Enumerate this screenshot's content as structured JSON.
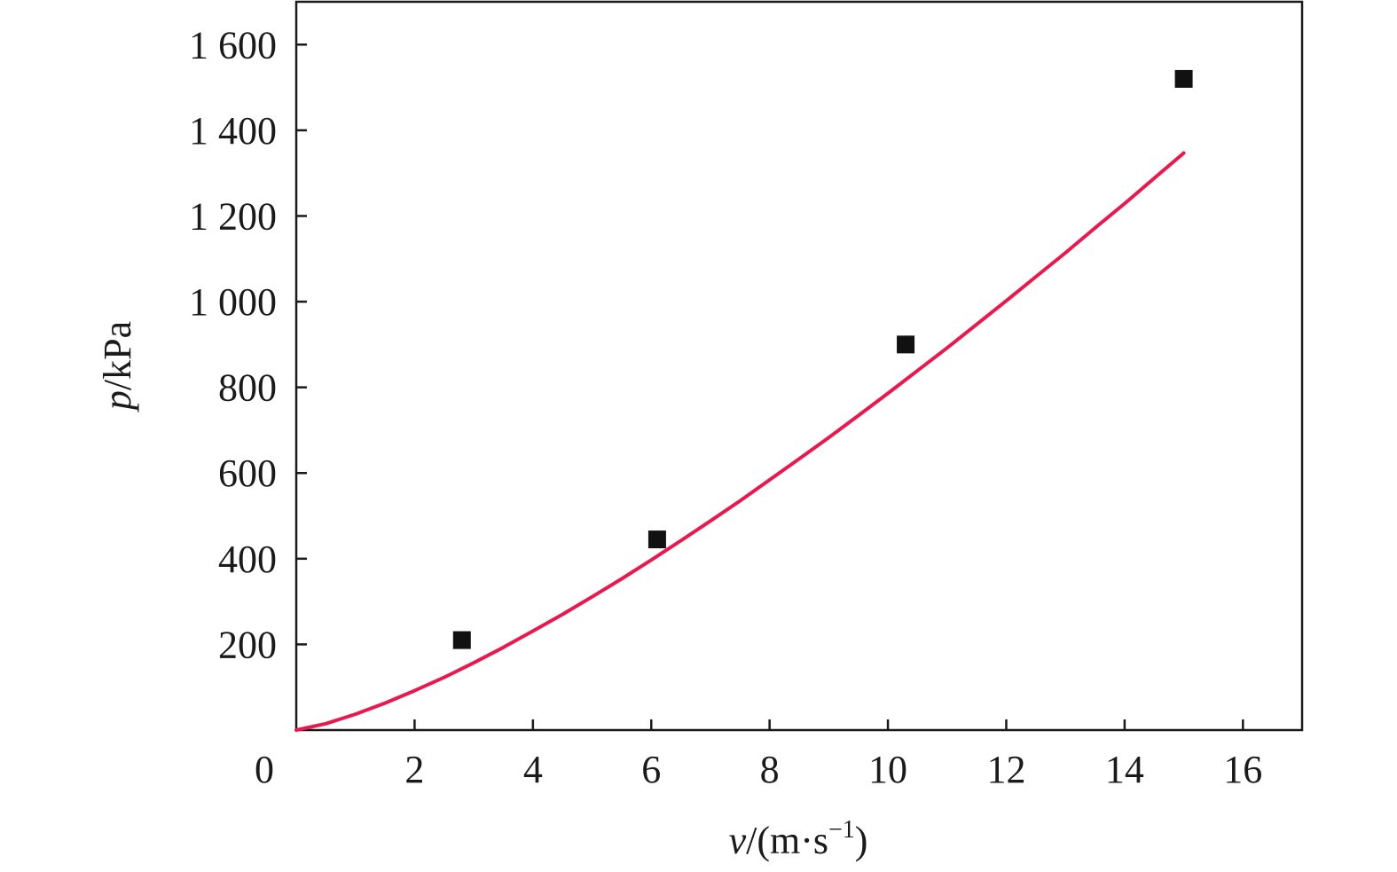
{
  "chart_data": {
    "type": "scatter",
    "xlabel": {
      "var": "v",
      "unit_prefix": "/(m·s",
      "exp": "−1",
      "unit_suffix": ")"
    },
    "ylabel": {
      "var": "p",
      "unit": "/kPa"
    },
    "xlim": [
      0,
      17
    ],
    "ylim": [
      0,
      1700
    ],
    "x_origin_label": "0",
    "x_ticks": [
      2,
      4,
      6,
      8,
      10,
      12,
      14,
      16
    ],
    "x_tick_labels": [
      "2",
      "4",
      "6",
      "8",
      "10",
      "12",
      "14",
      "16"
    ],
    "y_ticks": [
      200,
      400,
      600,
      800,
      1000,
      1200,
      1400,
      1600
    ],
    "y_tick_labels": [
      "200",
      "400",
      "600",
      "800",
      "1 000",
      "1 200",
      "1 400",
      "1 600"
    ],
    "grid": false,
    "series": [
      {
        "kind": "points",
        "marker": "square",
        "color": "#111111",
        "x": [
          2.8,
          6.1,
          10.3,
          15.0
        ],
        "y": [
          210,
          445,
          900,
          1520
        ]
      },
      {
        "kind": "fit-line",
        "color": "#e8194e",
        "x": [
          0,
          0.5,
          1,
          1.5,
          2,
          2.5,
          3,
          3.5,
          4,
          4.5,
          5,
          5.5,
          6,
          6.5,
          7,
          7.5,
          8,
          8.5,
          9,
          9.5,
          10,
          10.5,
          11,
          11.5,
          12,
          12.5,
          13,
          13.5,
          14,
          14.5,
          15
        ],
        "y": [
          0,
          15,
          37,
          63,
          92,
          123,
          157,
          193,
          231,
          270,
          311,
          353,
          397,
          442,
          488,
          535,
          584,
          633,
          683,
          734,
          786,
          839,
          892,
          947,
          1002,
          1058,
          1114,
          1172,
          1229,
          1288,
          1347
        ]
      }
    ]
  }
}
